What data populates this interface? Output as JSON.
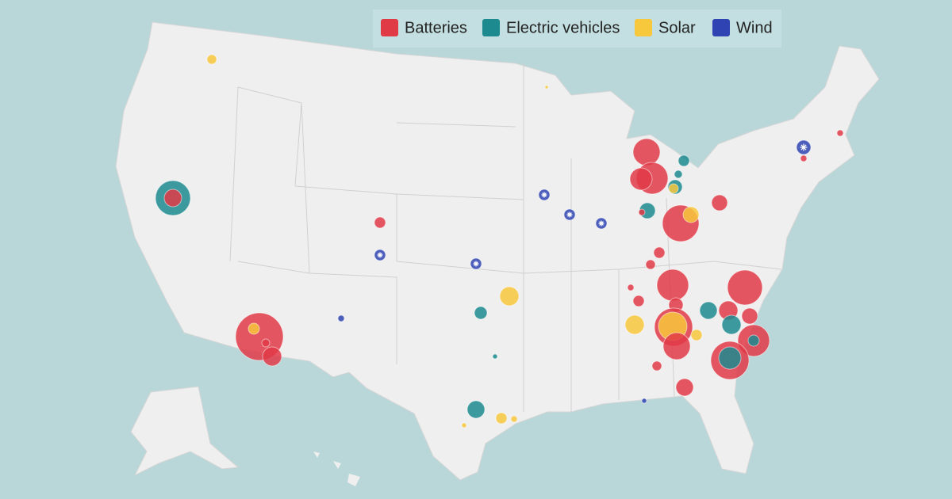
{
  "legend": {
    "items": [
      {
        "label": "Batteries",
        "color": "#e03a47"
      },
      {
        "label": "Electric vehicles",
        "color": "#1c8a8f"
      },
      {
        "label": "Solar",
        "color": "#f7c73c"
      },
      {
        "label": "Wind",
        "color": "#2f44b2"
      }
    ]
  }
}
